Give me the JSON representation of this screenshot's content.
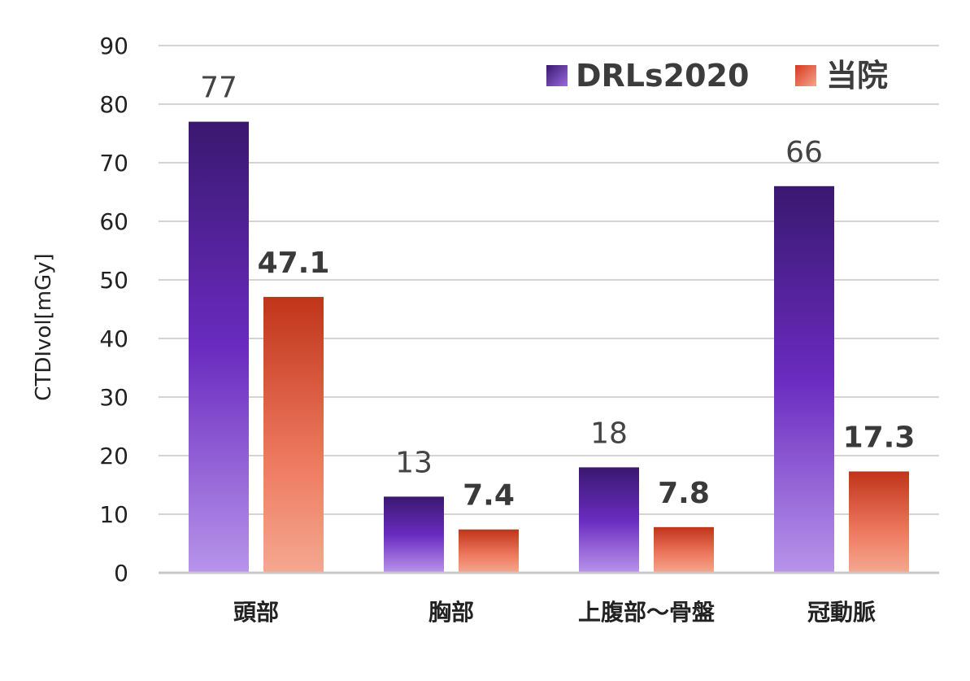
{
  "chart_data": {
    "type": "bar",
    "categories": [
      "頭部",
      "胸部",
      "上腹部～骨盤",
      "冠動脈"
    ],
    "series": [
      {
        "name": "DRLs2020",
        "values": [
          77,
          13,
          18,
          66
        ],
        "labels": [
          "77",
          "13",
          "18",
          "66"
        ],
        "color": "#5a1fa8"
      },
      {
        "name": "当院",
        "values": [
          47.1,
          7.4,
          7.8,
          17.3
        ],
        "labels": [
          "47.1",
          "7.4",
          "7.8",
          "17.3"
        ],
        "color": "#d84a2c"
      }
    ],
    "title": "",
    "xlabel": "",
    "ylabel": "CTDIvol[mGy]",
    "ylim": [
      0,
      90
    ],
    "yticks": [
      "0",
      "10",
      "20",
      "30",
      "40",
      "50",
      "60",
      "70",
      "80",
      "90"
    ],
    "grid": true,
    "legend": "top-right"
  }
}
